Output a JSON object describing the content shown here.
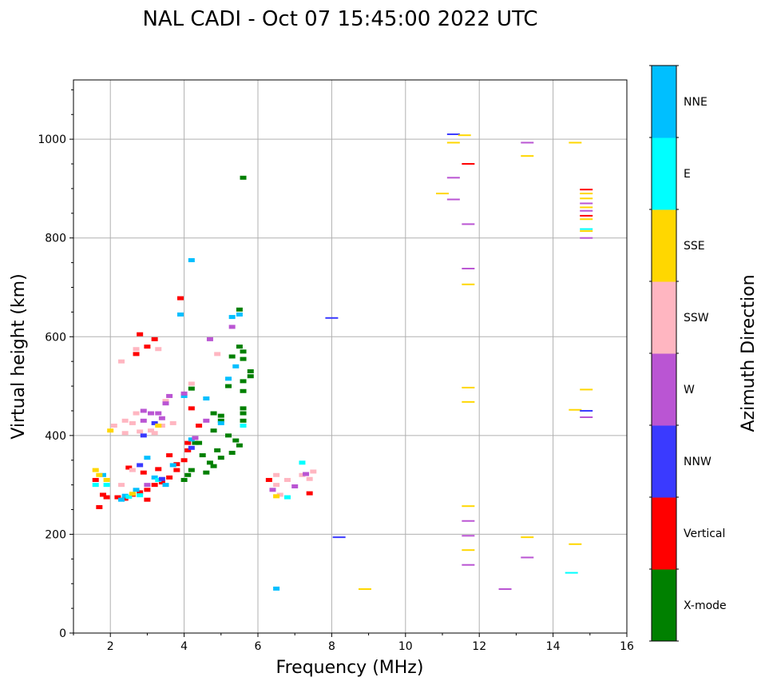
{
  "chart_data": {
    "type": "scatter",
    "title": "NAL CADI - Oct 07 15:45:00 2022 UTC",
    "xlabel": "Frequency (MHz)",
    "ylabel": "Virtual height (km)",
    "xlim": [
      1,
      16
    ],
    "ylim": [
      0,
      1120
    ],
    "xticks": [
      "2",
      "4",
      "6",
      "8",
      "10",
      "12",
      "14",
      "16"
    ],
    "yticks": [
      "0",
      "200",
      "400",
      "600",
      "800",
      "1000"
    ],
    "grid": true,
    "colorbar": {
      "label": "Azimuth Direction",
      "categories": [
        "X-mode",
        "Vertical",
        "NNW",
        "W",
        "SSW",
        "SSE",
        "E",
        "NNE"
      ],
      "colors": [
        "#008000",
        "#ff0000",
        "#3a3aff",
        "#ba55d3",
        "#ffb6c1",
        "#ffd700",
        "#00ffff",
        "#00bfff"
      ]
    },
    "points_format": [
      "frequency_mhz",
      "height_km",
      "direction_index"
    ],
    "points": [
      [
        11.3,
        1010,
        2
      ],
      [
        11.6,
        1008,
        5
      ],
      [
        11.3,
        993,
        5
      ],
      [
        11.7,
        950,
        1
      ],
      [
        11.3,
        922,
        3
      ],
      [
        11.0,
        890,
        5
      ],
      [
        11.3,
        878,
        3
      ],
      [
        11.7,
        828,
        3
      ],
      [
        11.7,
        738,
        3
      ],
      [
        11.7,
        706,
        5
      ],
      [
        11.7,
        497,
        5
      ],
      [
        11.7,
        468,
        5
      ],
      [
        11.7,
        257,
        5
      ],
      [
        11.7,
        227,
        3
      ],
      [
        11.7,
        197,
        3
      ],
      [
        11.7,
        168,
        5
      ],
      [
        11.7,
        138,
        3
      ],
      [
        13.3,
        993,
        3
      ],
      [
        13.3,
        966,
        5
      ],
      [
        13.3,
        194,
        5
      ],
      [
        13.3,
        153,
        3
      ],
      [
        12.7,
        89,
        3
      ],
      [
        14.6,
        993,
        5
      ],
      [
        14.9,
        898,
        1
      ],
      [
        14.9,
        890,
        5
      ],
      [
        14.9,
        880,
        5
      ],
      [
        14.9,
        870,
        3
      ],
      [
        14.9,
        862,
        5
      ],
      [
        14.9,
        855,
        3
      ],
      [
        14.9,
        845,
        1
      ],
      [
        14.9,
        838,
        5
      ],
      [
        14.9,
        818,
        6
      ],
      [
        14.9,
        814,
        5
      ],
      [
        14.9,
        800,
        3
      ],
      [
        14.9,
        493,
        5
      ],
      [
        14.6,
        452,
        5
      ],
      [
        14.9,
        450,
        2
      ],
      [
        14.9,
        437,
        3
      ],
      [
        14.6,
        180,
        5
      ],
      [
        14.5,
        122,
        6
      ],
      [
        8.0,
        638,
        2
      ],
      [
        8.2,
        194,
        2
      ],
      [
        8.9,
        89,
        5
      ],
      [
        6.5,
        90,
        7
      ],
      [
        6.3,
        310,
        1
      ],
      [
        6.5,
        320,
        4
      ],
      [
        6.5,
        300,
        4
      ],
      [
        6.4,
        290,
        3
      ],
      [
        6.6,
        280,
        4
      ],
      [
        6.5,
        277,
        5
      ],
      [
        6.8,
        275,
        6
      ],
      [
        6.8,
        310,
        4
      ],
      [
        7.0,
        297,
        3
      ],
      [
        7.2,
        345,
        6
      ],
      [
        7.2,
        320,
        4
      ],
      [
        7.4,
        312,
        4
      ],
      [
        7.4,
        283,
        1
      ],
      [
        7.5,
        327,
        4
      ],
      [
        7.3,
        322,
        3
      ],
      [
        5.6,
        922,
        0
      ],
      [
        5.5,
        655,
        0
      ],
      [
        5.5,
        580,
        0
      ],
      [
        5.6,
        570,
        0
      ],
      [
        5.6,
        555,
        0
      ],
      [
        5.8,
        530,
        0
      ],
      [
        5.8,
        520,
        0
      ],
      [
        5.6,
        510,
        0
      ],
      [
        5.6,
        490,
        0
      ],
      [
        5.6,
        455,
        0
      ],
      [
        5.6,
        445,
        0
      ],
      [
        5.6,
        430,
        0
      ],
      [
        5.3,
        560,
        0
      ],
      [
        5.2,
        500,
        0
      ],
      [
        5.0,
        440,
        0
      ],
      [
        5.0,
        430,
        0
      ],
      [
        4.8,
        445,
        0
      ],
      [
        4.8,
        410,
        0
      ],
      [
        5.2,
        400,
        0
      ],
      [
        5.4,
        390,
        0
      ],
      [
        4.9,
        370,
        0
      ],
      [
        5.0,
        355,
        0
      ],
      [
        4.7,
        345,
        0
      ],
      [
        4.8,
        338,
        0
      ],
      [
        4.6,
        325,
        0
      ],
      [
        4.5,
        360,
        0
      ],
      [
        4.4,
        385,
        0
      ],
      [
        4.3,
        385,
        0
      ],
      [
        4.2,
        330,
        0
      ],
      [
        4.1,
        320,
        0
      ],
      [
        4.0,
        310,
        0
      ],
      [
        4.2,
        495,
        0
      ],
      [
        5.5,
        380,
        0
      ],
      [
        5.3,
        365,
        0
      ],
      [
        2.2,
        275,
        1
      ],
      [
        2.4,
        272,
        1
      ],
      [
        2.6,
        280,
        1
      ],
      [
        2.8,
        285,
        1
      ],
      [
        3.0,
        290,
        1
      ],
      [
        3.2,
        300,
        1
      ],
      [
        3.4,
        305,
        1
      ],
      [
        3.6,
        315,
        1
      ],
      [
        3.8,
        330,
        1
      ],
      [
        4.0,
        350,
        1
      ],
      [
        4.1,
        370,
        1
      ],
      [
        4.1,
        385,
        1
      ],
      [
        3.9,
        678,
        1
      ],
      [
        2.8,
        605,
        1
      ],
      [
        3.2,
        595,
        1
      ],
      [
        3.0,
        580,
        1
      ],
      [
        2.7,
        565,
        1
      ],
      [
        1.7,
        255,
        1
      ],
      [
        1.8,
        280,
        1
      ],
      [
        1.9,
        275,
        1
      ],
      [
        1.6,
        310,
        1
      ],
      [
        3.8,
        342,
        1
      ],
      [
        3.6,
        360,
        1
      ],
      [
        2.9,
        325,
        1
      ],
      [
        3.3,
        332,
        1
      ],
      [
        2.5,
        335,
        1
      ],
      [
        4.4,
        420,
        1
      ],
      [
        4.2,
        455,
        1
      ],
      [
        3.0,
        270,
        1
      ],
      [
        4.2,
        755,
        7
      ],
      [
        5.3,
        640,
        7
      ],
      [
        5.5,
        645,
        7
      ],
      [
        2.4,
        278,
        7
      ],
      [
        2.3,
        270,
        7
      ],
      [
        2.7,
        290,
        7
      ],
      [
        3.2,
        315,
        7
      ],
      [
        3.5,
        300,
        7
      ],
      [
        3.0,
        355,
        7
      ],
      [
        4.0,
        480,
        7
      ],
      [
        5.2,
        515,
        7
      ],
      [
        5.4,
        540,
        7
      ],
      [
        5.0,
        425,
        7
      ],
      [
        4.6,
        475,
        7
      ],
      [
        1.8,
        320,
        7
      ],
      [
        3.9,
        645,
        7
      ],
      [
        4.2,
        392,
        7
      ],
      [
        3.7,
        340,
        7
      ],
      [
        2.5,
        276,
        6
      ],
      [
        2.8,
        279,
        6
      ],
      [
        1.6,
        300,
        6
      ],
      [
        1.9,
        300,
        6
      ],
      [
        5.6,
        420,
        6
      ],
      [
        3.3,
        310,
        6
      ],
      [
        2.4,
        430,
        4
      ],
      [
        2.6,
        425,
        4
      ],
      [
        2.4,
        405,
        4
      ],
      [
        2.8,
        408,
        4
      ],
      [
        3.1,
        410,
        4
      ],
      [
        3.4,
        420,
        4
      ],
      [
        3.2,
        405,
        4
      ],
      [
        3.7,
        425,
        4
      ],
      [
        4.2,
        505,
        4
      ],
      [
        2.1,
        420,
        4
      ],
      [
        2.7,
        445,
        4
      ],
      [
        3.5,
        470,
        4
      ],
      [
        4.9,
        565,
        4
      ],
      [
        2.3,
        550,
        4
      ],
      [
        2.7,
        575,
        4
      ],
      [
        3.3,
        575,
        4
      ],
      [
        2.6,
        330,
        4
      ],
      [
        2.3,
        300,
        4
      ],
      [
        2.9,
        450,
        3
      ],
      [
        3.1,
        445,
        3
      ],
      [
        3.3,
        445,
        3
      ],
      [
        3.5,
        465,
        3
      ],
      [
        3.6,
        480,
        3
      ],
      [
        4.0,
        485,
        3
      ],
      [
        2.9,
        430,
        3
      ],
      [
        3.4,
        435,
        3
      ],
      [
        5.3,
        620,
        3
      ],
      [
        4.7,
        595,
        3
      ],
      [
        4.3,
        395,
        3
      ],
      [
        4.6,
        430,
        3
      ],
      [
        3.0,
        300,
        3
      ],
      [
        3.2,
        425,
        2
      ],
      [
        2.9,
        400,
        2
      ],
      [
        4.2,
        375,
        2
      ],
      [
        3.4,
        312,
        2
      ],
      [
        2.8,
        340,
        2
      ],
      [
        2.0,
        410,
        5
      ],
      [
        1.6,
        330,
        5
      ],
      [
        1.7,
        320,
        5
      ],
      [
        1.9,
        310,
        5
      ],
      [
        3.3,
        420,
        5
      ],
      [
        2.6,
        282,
        5
      ]
    ]
  }
}
